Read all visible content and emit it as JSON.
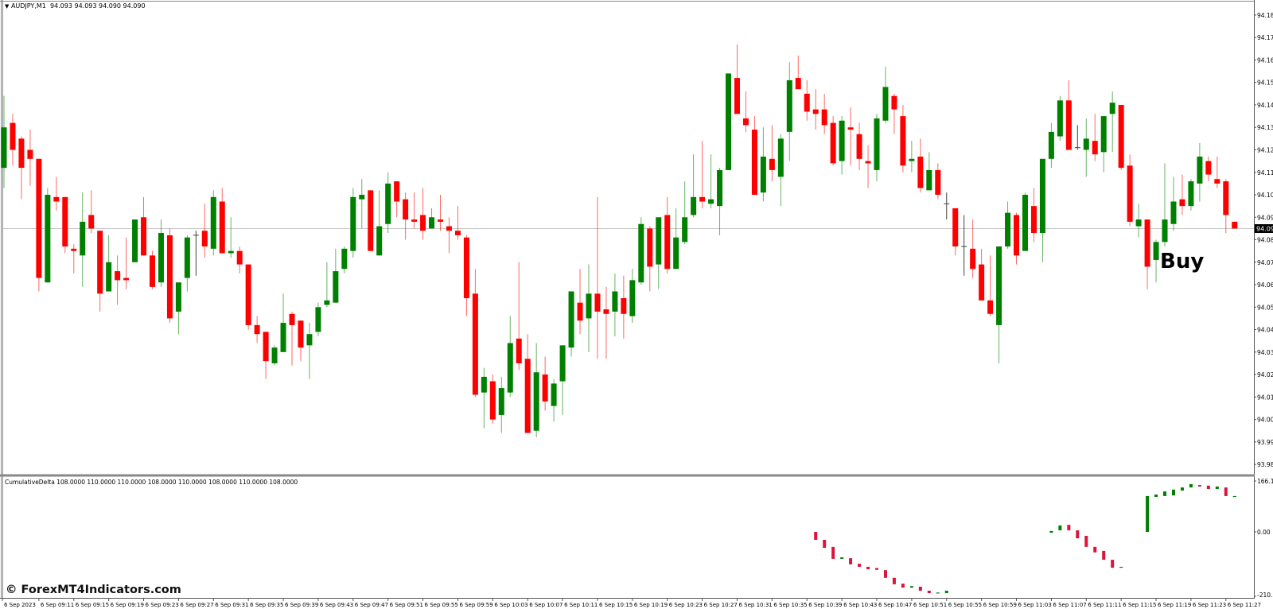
{
  "header": {
    "symbol": "AUDJPY,M1",
    "ohlc": "94.093 94.093 94.090 94.090",
    "dropdown_icon": "triangle-down-icon"
  },
  "indicator_header": "CumulativeDelta 108.0000 110.0000 110.0000 108.0000 110.0000 108.0000 110.0000 108.0000",
  "signal_label": "Buy",
  "watermark": "© ForexMT4Indicators.com",
  "colors": {
    "bull": "#008000",
    "bear": "#ff0000",
    "doji": "#404040",
    "delta_bull": "#008000",
    "delta_bear": "#dc143c",
    "price_line": "#c8c8c8",
    "price_box": "#000000"
  },
  "chart_data": [
    {
      "type": "candlestick",
      "title": "AUDJPY,M1",
      "timeframe": "M1",
      "current_price": "94.090",
      "ylim": [
        93.98,
        94.19
      ],
      "y_tick_labels": [
        "94.185",
        "94.175",
        "94.165",
        "94.155",
        "94.145",
        "94.135",
        "94.125",
        "94.115",
        "94.105",
        "94.095",
        "94.085",
        "94.075",
        "94.065",
        "94.055",
        "94.045",
        "94.035",
        "94.025",
        "94.015",
        "94.005",
        "93.995",
        "93.985"
      ],
      "x_tick_labels": [
        "6 Sep 2023",
        "6 Sep 09:11",
        "6 Sep 09:15",
        "6 Sep 09:19",
        "6 Sep 09:23",
        "6 Sep 09:27",
        "6 Sep 09:31",
        "6 Sep 09:35",
        "6 Sep 09:39",
        "6 Sep 09:43",
        "6 Sep 09:47",
        "6 Sep 09:51",
        "6 Sep 09:55",
        "6 Sep 09:59",
        "6 Sep 10:03",
        "6 Sep 10:07",
        "6 Sep 10:11",
        "6 Sep 10:15",
        "6 Sep 10:19",
        "6 Sep 10:23",
        "6 Sep 10:27",
        "6 Sep 10:31",
        "6 Sep 10:35",
        "6 Sep 10:39",
        "6 Sep 10:43",
        "6 Sep 10:47",
        "6 Sep 10:51",
        "6 Sep 10:55",
        "6 Sep 10:59",
        "6 Sep 11:03",
        "6 Sep 11:07",
        "6 Sep 11:11",
        "6 Sep 11:15",
        "6 Sep 11:19",
        "6 Sep 11:23",
        "6 Sep 11:27"
      ],
      "grid": false,
      "ohlc": [
        [
          94.117,
          94.149,
          94.108,
          94.135
        ],
        [
          94.137,
          94.141,
          94.118,
          94.125
        ],
        [
          94.13,
          94.131,
          94.103,
          94.117
        ],
        [
          94.125,
          94.134,
          94.109,
          94.121
        ],
        [
          94.121,
          94.121,
          94.062,
          94.068
        ],
        [
          94.066,
          94.108,
          94.066,
          94.105
        ],
        [
          94.104,
          94.113,
          94.098,
          94.102
        ],
        [
          94.104,
          94.104,
          94.079,
          94.082
        ],
        [
          94.081,
          94.083,
          94.07,
          94.08
        ],
        [
          94.078,
          94.106,
          94.064,
          94.093
        ],
        [
          94.096,
          94.107,
          94.088,
          94.09
        ],
        [
          94.089,
          94.089,
          94.053,
          94.061
        ],
        [
          94.062,
          94.087,
          94.062,
          94.075
        ],
        [
          94.071,
          94.078,
          94.056,
          94.067
        ],
        [
          94.068,
          94.086,
          94.063,
          94.067
        ],
        [
          94.075,
          94.094,
          94.075,
          94.094
        ],
        [
          94.095,
          94.104,
          94.078,
          94.078
        ],
        [
          94.078,
          94.08,
          94.063,
          94.064
        ],
        [
          94.066,
          94.094,
          94.064,
          94.088
        ],
        [
          94.087,
          94.09,
          94.048,
          94.05
        ],
        [
          94.053,
          94.066,
          94.043,
          94.066
        ],
        [
          94.068,
          94.087,
          94.062,
          94.086
        ],
        [
          94.087,
          94.089,
          94.069,
          94.087
        ],
        [
          94.089,
          94.101,
          94.077,
          94.082
        ],
        [
          94.081,
          94.107,
          94.078,
          94.104
        ],
        [
          94.102,
          94.108,
          94.079,
          94.079
        ],
        [
          94.079,
          94.095,
          94.077,
          94.08
        ],
        [
          94.08,
          94.082,
          94.07,
          94.074
        ],
        [
          94.074,
          94.074,
          94.045,
          94.047
        ],
        [
          94.047,
          94.051,
          94.039,
          94.043
        ],
        [
          94.044,
          94.044,
          94.023,
          94.031
        ],
        [
          94.03,
          94.038,
          94.029,
          94.037
        ],
        [
          94.035,
          94.061,
          94.035,
          94.048
        ],
        [
          94.052,
          94.053,
          94.029,
          94.047
        ],
        [
          94.049,
          94.049,
          94.031,
          94.037
        ],
        [
          94.038,
          94.048,
          94.023,
          94.043
        ],
        [
          94.044,
          94.057,
          94.042,
          94.055
        ],
        [
          94.056,
          94.075,
          94.055,
          94.058
        ],
        [
          94.057,
          94.081,
          94.057,
          94.071
        ],
        [
          94.072,
          94.082,
          94.07,
          94.081
        ],
        [
          94.08,
          94.108,
          94.077,
          94.104
        ],
        [
          94.103,
          94.112,
          94.09,
          94.105
        ],
        [
          94.107,
          94.107,
          94.08,
          94.08
        ],
        [
          94.078,
          94.107,
          94.078,
          94.091
        ],
        [
          94.092,
          94.115,
          94.088,
          94.11
        ],
        [
          94.111,
          94.111,
          94.095,
          94.102
        ],
        [
          94.103,
          94.106,
          94.085,
          94.094
        ],
        [
          94.094,
          94.106,
          94.09,
          94.093
        ],
        [
          94.096,
          94.108,
          94.085,
          94.089
        ],
        [
          94.09,
          94.099,
          94.09,
          94.095
        ],
        [
          94.094,
          94.105,
          94.089,
          94.093
        ],
        [
          94.091,
          94.095,
          94.079,
          94.089
        ],
        [
          94.089,
          94.1,
          94.085,
          94.087
        ],
        [
          94.086,
          94.087,
          94.051,
          94.059
        ],
        [
          94.061,
          94.072,
          94.015,
          94.016
        ],
        [
          94.017,
          94.028,
          94.001,
          94.024
        ],
        [
          94.022,
          94.025,
          94.003,
          94.005
        ],
        [
          94.007,
          94.024,
          93.999,
          94.019
        ],
        [
          94.017,
          94.051,
          94.015,
          94.039
        ],
        [
          94.041,
          94.075,
          94.027,
          94.03
        ],
        [
          94.032,
          94.043,
          93.999,
          93.999
        ],
        [
          94.0,
          94.039,
          93.997,
          94.026
        ],
        [
          94.025,
          94.033,
          94.009,
          94.013
        ],
        [
          94.011,
          94.023,
          94.004,
          94.021
        ],
        [
          94.022,
          94.038,
          94.007,
          94.038
        ],
        [
          94.037,
          94.062,
          94.033,
          94.062
        ],
        [
          94.057,
          94.072,
          94.043,
          94.049
        ],
        [
          94.05,
          94.074,
          94.035,
          94.061
        ],
        [
          94.061,
          94.104,
          94.032,
          94.053
        ],
        [
          94.054,
          94.064,
          94.032,
          94.052
        ],
        [
          94.053,
          94.07,
          94.042,
          94.062
        ],
        [
          94.059,
          94.069,
          94.041,
          94.052
        ],
        [
          94.051,
          94.072,
          94.048,
          94.067
        ],
        [
          94.066,
          94.095,
          94.065,
          94.092
        ],
        [
          94.09,
          94.091,
          94.062,
          94.073
        ],
        [
          94.074,
          94.095,
          94.063,
          94.095
        ],
        [
          94.096,
          94.104,
          94.07,
          94.072
        ],
        [
          94.072,
          94.099,
          94.072,
          94.086
        ],
        [
          94.084,
          94.111,
          94.083,
          94.095
        ],
        [
          94.096,
          94.123,
          94.095,
          94.104
        ],
        [
          94.104,
          94.129,
          94.099,
          94.102
        ],
        [
          94.101,
          94.123,
          94.099,
          94.103
        ],
        [
          94.1,
          94.117,
          94.087,
          94.116
        ],
        [
          94.116,
          94.159,
          94.116,
          94.159
        ],
        [
          94.157,
          94.172,
          94.141,
          94.141
        ],
        [
          94.139,
          94.151,
          94.133,
          94.136
        ],
        [
          94.134,
          94.14,
          94.105,
          94.105
        ],
        [
          94.106,
          94.135,
          94.102,
          94.122
        ],
        [
          94.121,
          94.136,
          94.111,
          94.116
        ],
        [
          94.113,
          94.132,
          94.1,
          94.13
        ],
        [
          94.133,
          94.164,
          94.12,
          94.156
        ],
        [
          94.157,
          94.167,
          94.152,
          94.152
        ],
        [
          94.15,
          94.156,
          94.138,
          94.142
        ],
        [
          94.143,
          94.152,
          94.134,
          94.141
        ],
        [
          94.143,
          94.15,
          94.132,
          94.136
        ],
        [
          94.137,
          94.14,
          94.118,
          94.119
        ],
        [
          94.12,
          94.14,
          94.114,
          94.138
        ],
        [
          94.135,
          94.144,
          94.118,
          94.134
        ],
        [
          94.132,
          94.137,
          94.116,
          94.121
        ],
        [
          94.12,
          94.127,
          94.108,
          94.119
        ],
        [
          94.116,
          94.141,
          94.111,
          94.139
        ],
        [
          94.138,
          94.162,
          94.137,
          94.153
        ],
        [
          94.149,
          94.15,
          94.132,
          94.143
        ],
        [
          94.14,
          94.145,
          94.115,
          94.118
        ],
        [
          94.12,
          94.129,
          94.115,
          94.121
        ],
        [
          94.122,
          94.13,
          94.106,
          94.108
        ],
        [
          94.107,
          94.124,
          94.107,
          94.116
        ],
        [
          94.116,
          94.119,
          94.103,
          94.105
        ],
        [
          94.101,
          94.106,
          94.094,
          94.101
        ],
        [
          94.099,
          94.099,
          94.078,
          94.082
        ],
        [
          94.082,
          94.096,
          94.069,
          94.082
        ],
        [
          94.081,
          94.094,
          94.068,
          94.072
        ],
        [
          94.074,
          94.081,
          94.058,
          94.058
        ],
        [
          94.058,
          94.078,
          94.051,
          94.052
        ],
        [
          94.047,
          94.082,
          94.03,
          94.082
        ],
        [
          94.082,
          94.102,
          94.081,
          94.097
        ],
        [
          94.096,
          94.097,
          94.074,
          94.078
        ],
        [
          94.08,
          94.106,
          94.08,
          94.105
        ],
        [
          94.1,
          94.108,
          94.084,
          94.088
        ],
        [
          94.088,
          94.121,
          94.075,
          94.121
        ],
        [
          94.121,
          94.137,
          94.117,
          94.133
        ],
        [
          94.131,
          94.149,
          94.129,
          94.147
        ],
        [
          94.147,
          94.156,
          94.125,
          94.125
        ],
        [
          94.126,
          94.136,
          94.125,
          94.126
        ],
        [
          94.125,
          94.139,
          94.113,
          94.13
        ],
        [
          94.129,
          94.141,
          94.12,
          94.123
        ],
        [
          94.124,
          94.14,
          94.115,
          94.14
        ],
        [
          94.141,
          94.151,
          94.124,
          94.146
        ],
        [
          94.145,
          94.145,
          94.116,
          94.117
        ],
        [
          94.118,
          94.123,
          94.091,
          94.093
        ],
        [
          94.091,
          94.101,
          94.086,
          94.094
        ],
        [
          94.094,
          94.094,
          94.063,
          94.073
        ],
        [
          94.076,
          94.085,
          94.066,
          94.084
        ],
        [
          94.084,
          94.119,
          94.082,
          94.094
        ],
        [
          94.092,
          94.113,
          94.089,
          94.102
        ],
        [
          94.103,
          94.114,
          94.096,
          94.1
        ],
        [
          94.1,
          94.112,
          94.098,
          94.111
        ],
        [
          94.11,
          94.128,
          94.102,
          94.122
        ],
        [
          94.12,
          94.122,
          94.111,
          94.114
        ],
        [
          94.112,
          94.122,
          94.108,
          94.11
        ],
        [
          94.111,
          94.112,
          94.088,
          94.096
        ],
        [
          94.093,
          94.093,
          94.09,
          94.09
        ]
      ]
    },
    {
      "type": "bar",
      "title": "CumulativeDelta",
      "ylim": [
        -210.1,
        166.1
      ],
      "y_tick_labels": [
        "166.1",
        "0.00",
        "-210.1"
      ],
      "open_close": [
        null,
        null,
        null,
        null,
        null,
        null,
        null,
        null,
        null,
        null,
        null,
        null,
        null,
        null,
        null,
        null,
        null,
        null,
        null,
        null,
        null,
        null,
        null,
        null,
        null,
        null,
        null,
        null,
        null,
        null,
        null,
        null,
        null,
        null,
        null,
        null,
        null,
        null,
        null,
        null,
        null,
        null,
        null,
        null,
        null,
        null,
        null,
        null,
        null,
        null,
        null,
        null,
        null,
        null,
        null,
        null,
        null,
        null,
        null,
        null,
        null,
        null,
        null,
        null,
        null,
        null,
        null,
        null,
        null,
        null,
        null,
        null,
        null,
        null,
        null,
        null,
        null,
        null,
        null,
        null,
        null,
        null,
        null,
        null,
        null,
        null,
        null,
        null,
        null,
        null,
        null,
        null,
        null,
        [
          0,
          -26
        ],
        [
          -26,
          -52
        ],
        [
          -49,
          -88
        ],
        [
          -88,
          -83
        ],
        [
          -86,
          -106
        ],
        [
          -104,
          -114
        ],
        [
          -114,
          -122
        ],
        [
          -118,
          -124
        ],
        [
          -125,
          -150
        ],
        [
          -150,
          -171
        ],
        [
          -169,
          -182
        ],
        [
          -182,
          -177
        ],
        [
          -179,
          -192
        ],
        [
          -192,
          -200
        ],
        [
          -200,
          -198
        ],
        [
          -200,
          -192
        ],
        null,
        null,
        null,
        null,
        null,
        null,
        null,
        null,
        null,
        null,
        null,
        [
          -3,
          3
        ],
        [
          5,
          21
        ],
        [
          23,
          5
        ],
        [
          5,
          -21
        ],
        [
          -13,
          -49
        ],
        [
          -49,
          -67
        ],
        [
          -62,
          -91
        ],
        [
          -91,
          -117
        ],
        [
          -114,
          -114
        ],
        null,
        null,
        [
          0,
          117
        ],
        [
          114,
          122
        ],
        [
          117,
          132
        ],
        [
          119,
          138
        ],
        [
          135,
          145
        ],
        [
          145,
          156
        ],
        [
          153,
          148
        ],
        [
          151,
          140
        ],
        [
          140,
          148
        ],
        [
          145,
          117
        ],
        [
          117,
          117
        ]
      ]
    }
  ]
}
